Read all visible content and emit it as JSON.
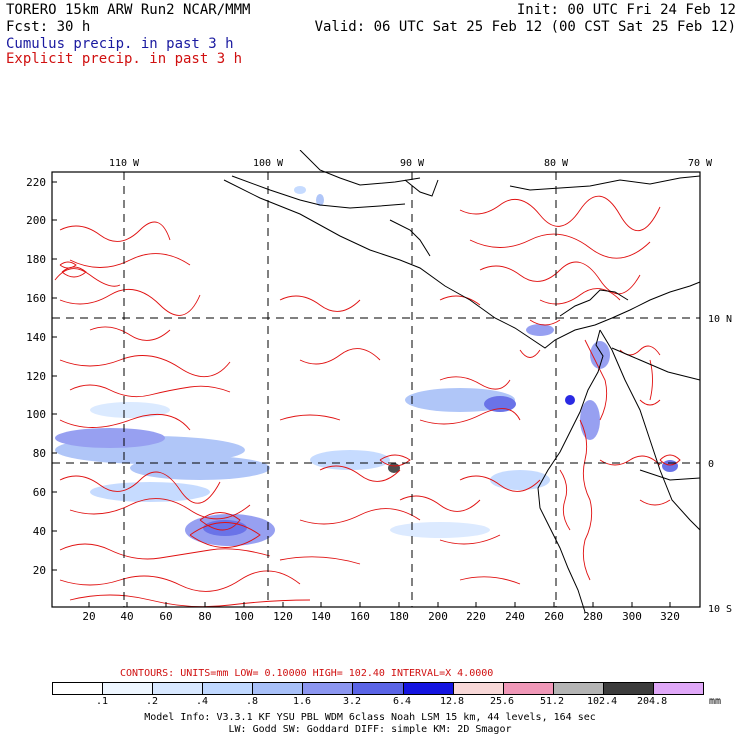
{
  "header": {
    "model": "TORERO  15km ARW   Run2    NCAR/MMM",
    "init": "Init: 00 UTC Fri 24 Feb 12",
    "fcst": "Fcst:   30 h",
    "valid": "Valid: 06 UTC Sat 25 Feb 12 (00 CST Sat 25 Feb 12)",
    "field1": "Cumulus precip. in past 3 h",
    "field2": "Explicit precip. in past 3 h"
  },
  "map": {
    "top_lon_labels": [
      "110 W",
      "100 W",
      "90 W",
      "80 W",
      "70 W"
    ],
    "right_lat_labels": [
      "10 N",
      "0",
      "10 S"
    ],
    "left_ticks": [
      "220",
      "200",
      "180",
      "160",
      "140",
      "120",
      "100",
      "80",
      "60",
      "40",
      "20"
    ],
    "bottom_ticks": [
      "20",
      "40",
      "60",
      "80",
      "100",
      "120",
      "140",
      "160",
      "180",
      "200",
      "220",
      "240",
      "260",
      "280",
      "300",
      "320"
    ]
  },
  "contours": {
    "line": "CONTOURS:  UNITS=mm  LOW= 0.10000       HIGH=  102.40       INTERVAL=X  4.0000"
  },
  "colorbar": {
    "unit": "mm",
    "labels": [
      ".1",
      ".2",
      ".4",
      ".8",
      "1.6",
      "3.2",
      "6.4",
      "12.8",
      "25.6",
      "51.2",
      "102.4",
      "204.8"
    ],
    "colors": [
      "#ffffff",
      "#eef6ff",
      "#d8e8ff",
      "#c0d8ff",
      "#a8c0f8",
      "#8c96f0",
      "#5a64e6",
      "#1414e0",
      "#f8d8d8",
      "#f098b8",
      "#b4b4b4",
      "#3c3c3c",
      "#e0a8f8"
    ]
  },
  "footer": {
    "line1": "Model Info: V3.3.1    KF     YSU PBL   WDM 6class  Noah LSM  15 km,    44 levels,  164 sec",
    "line2": "LW: Godd SW: Goddard DIFF: simple KM: 2D Smagor"
  }
}
